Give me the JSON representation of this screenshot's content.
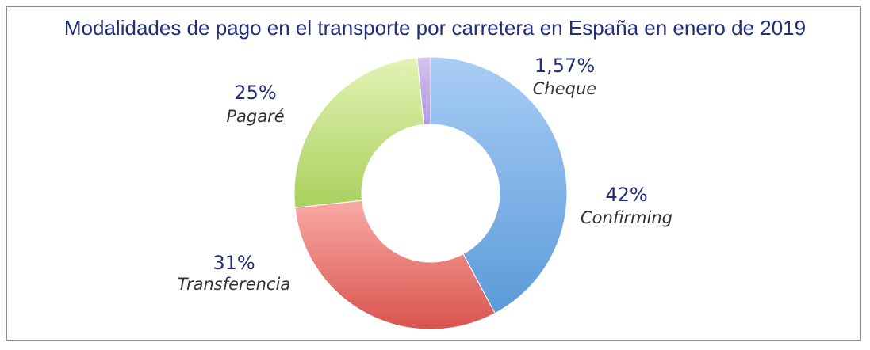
{
  "chart_data": {
    "type": "pie",
    "variant": "donut",
    "title": "Modalidades de pago en el transporte por carretera en España en enero de 2019",
    "slices": [
      {
        "label": "Confirming",
        "value": 42,
        "display": "42%",
        "color_light": "#a9cdf6",
        "color_dark": "#5b9ad9"
      },
      {
        "label": "Transferencia",
        "value": 31,
        "display": "31%",
        "color_light": "#f9aaa5",
        "color_dark": "#d9544e"
      },
      {
        "label": "Pagaré",
        "value": 25,
        "display": "25%",
        "color_light": "#e3f3b5",
        "color_dark": "#a9d05e"
      },
      {
        "label": "Cheque",
        "value": 1.57,
        "display": "1,57%",
        "color_light": "#d3c2ee",
        "color_dark": "#b39ae0"
      }
    ]
  }
}
